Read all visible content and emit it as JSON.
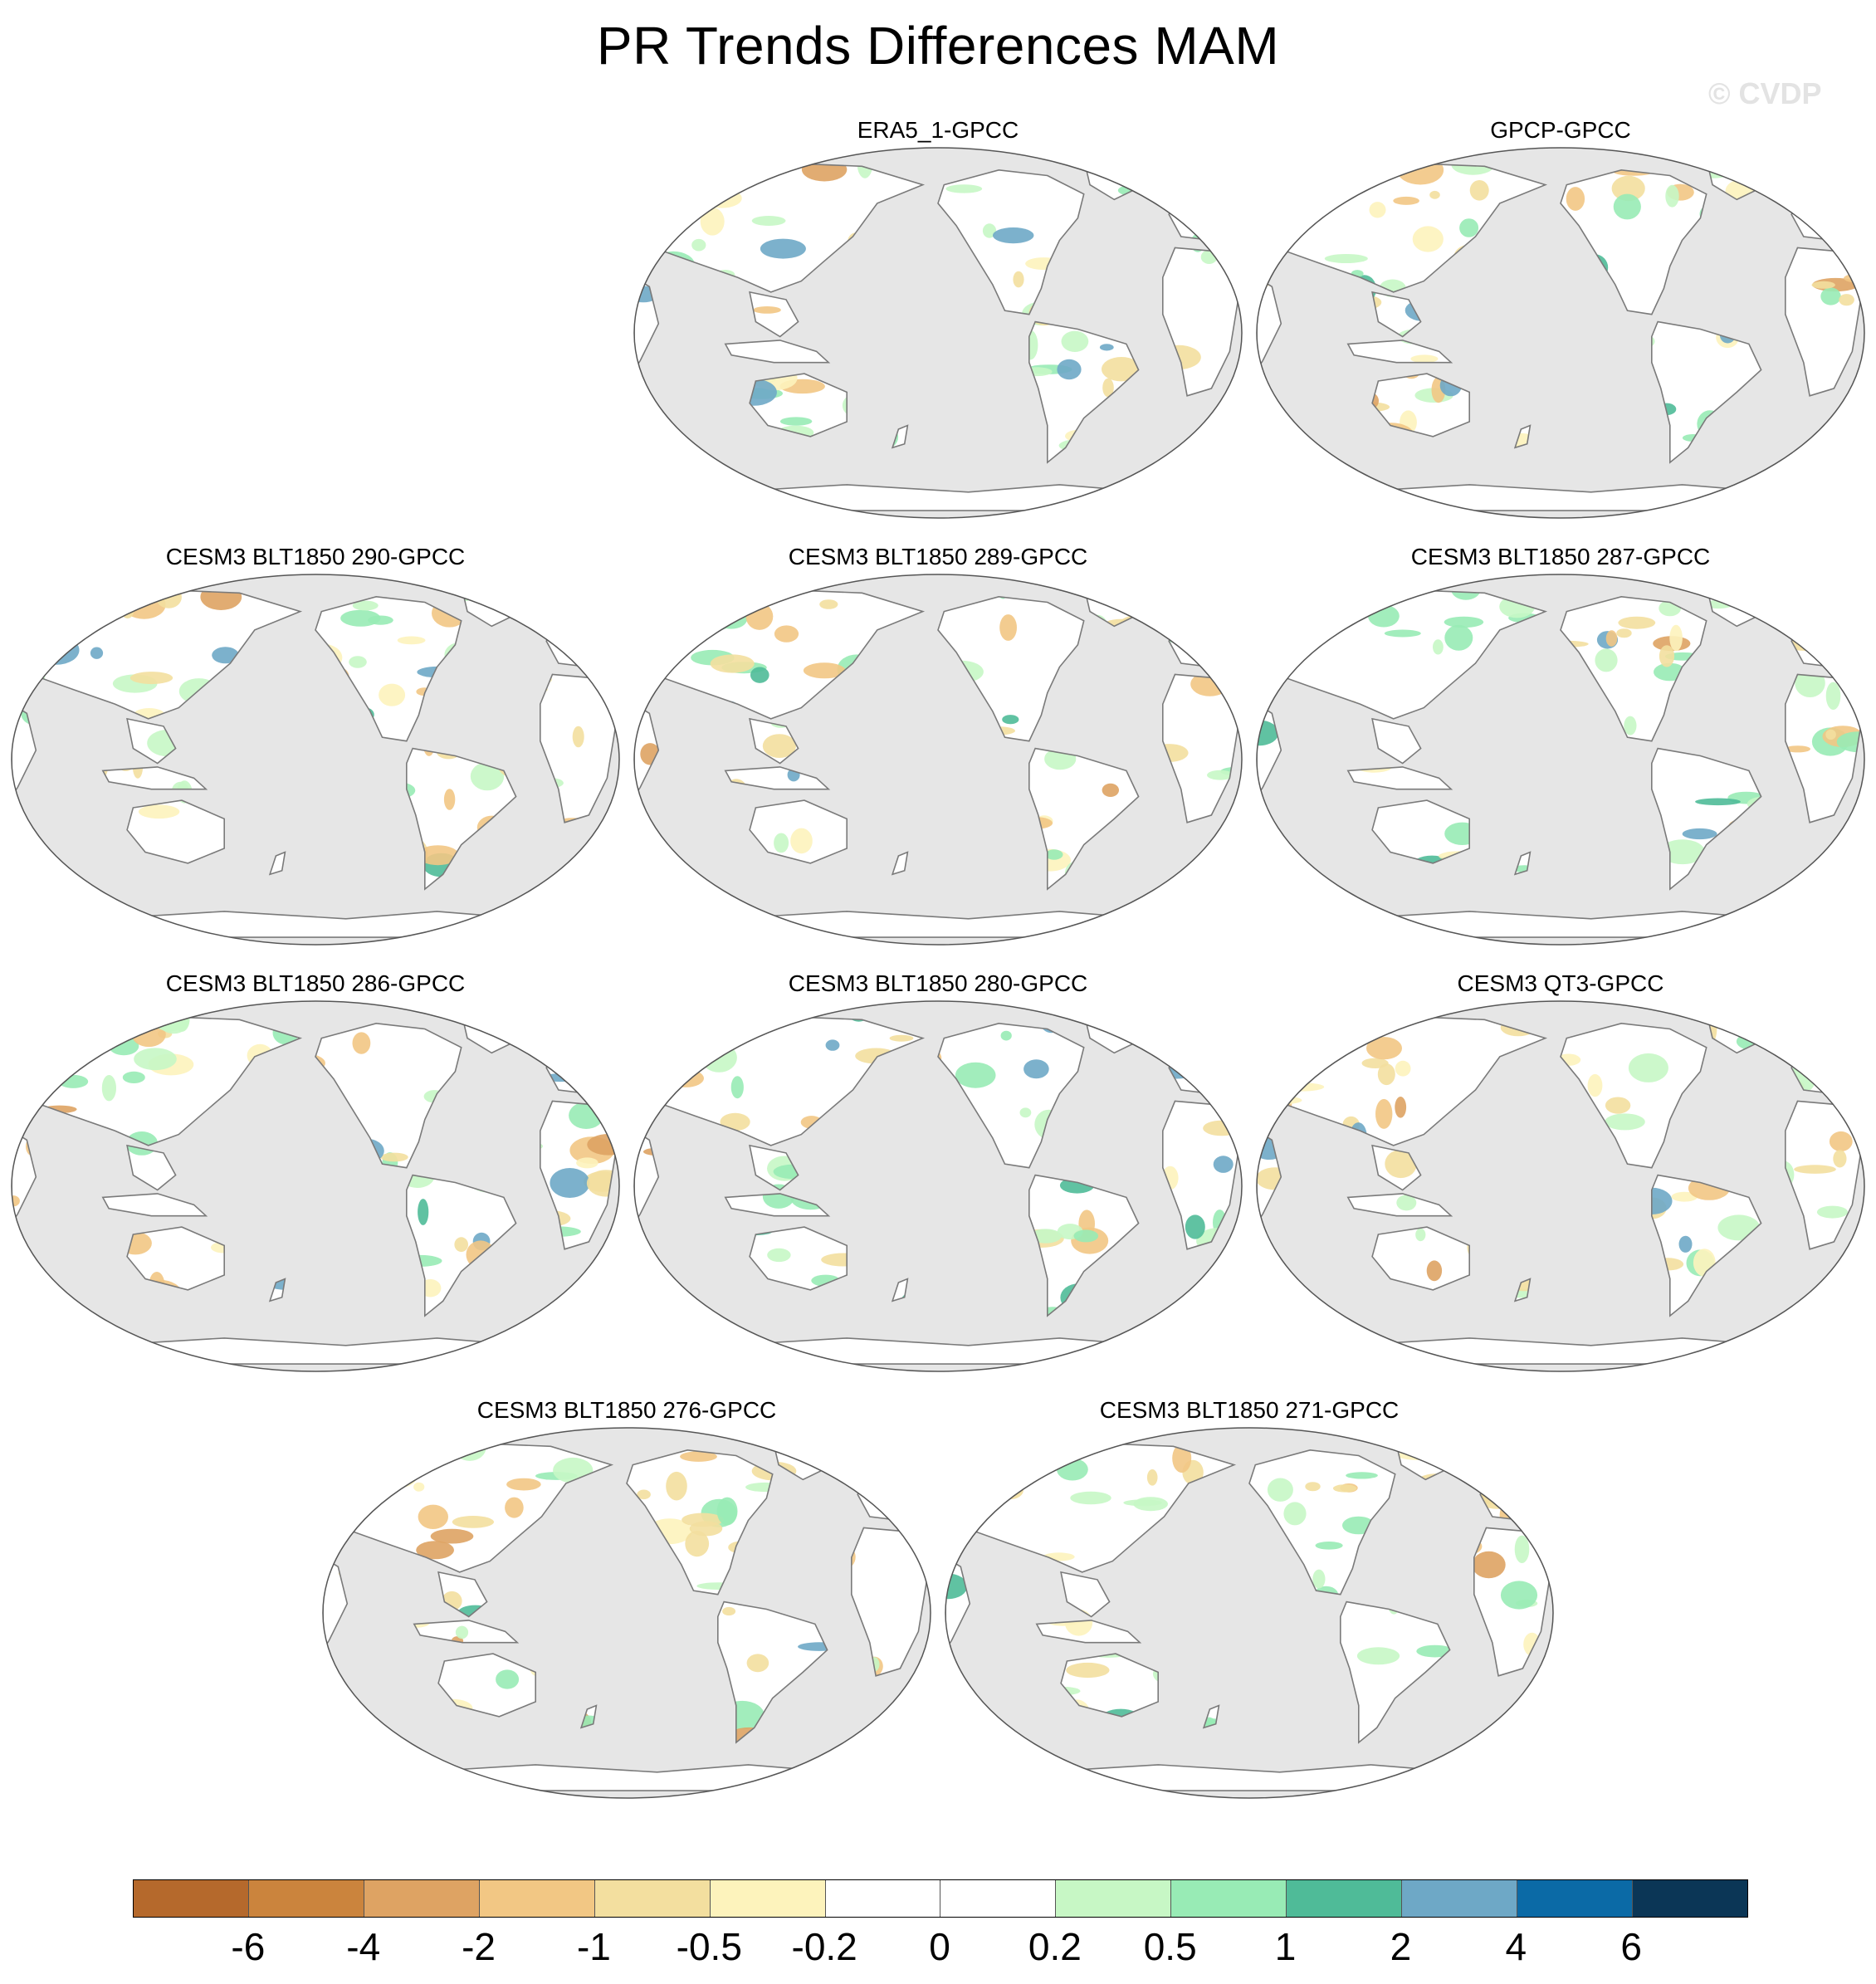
{
  "title": "PR Trends Differences MAM",
  "watermark": "© CVDP",
  "panels": [
    {
      "title": "ERA5_1-GPCC"
    },
    {
      "title": "GPCP-GPCC"
    },
    {
      "title": "CESM3 BLT1850 290-GPCC"
    },
    {
      "title": "CESM3 BLT1850 289-GPCC"
    },
    {
      "title": "CESM3 BLT1850 287-GPCC"
    },
    {
      "title": "CESM3 BLT1850 286-GPCC"
    },
    {
      "title": "CESM3 BLT1850 280-GPCC"
    },
    {
      "title": "CESM3 QT3-GPCC"
    },
    {
      "title": "CESM3 BLT1850 276-GPCC"
    },
    {
      "title": "CESM3 BLT1850 271-GPCC"
    }
  ],
  "map": {
    "ocean_color": "#e6e6e6",
    "land_color": "#ffffff",
    "coast_color": "#7a7a7a"
  },
  "colorbar": {
    "colors": [
      "#b5692c",
      "#cb843d",
      "#dea363",
      "#f2c784",
      "#f3df9f",
      "#fdf3bc",
      "#ffffff",
      "#ffffff",
      "#c7f7c5",
      "#98ebb5",
      "#4fbb98",
      "#6ea8c6",
      "#0b6aa6",
      "#0b3656"
    ],
    "labels": [
      "-6",
      "-4",
      "-2",
      "-1",
      "-0.5",
      "-0.2",
      "0",
      "0.2",
      "0.5",
      "1",
      "2",
      "4",
      "6"
    ]
  }
}
